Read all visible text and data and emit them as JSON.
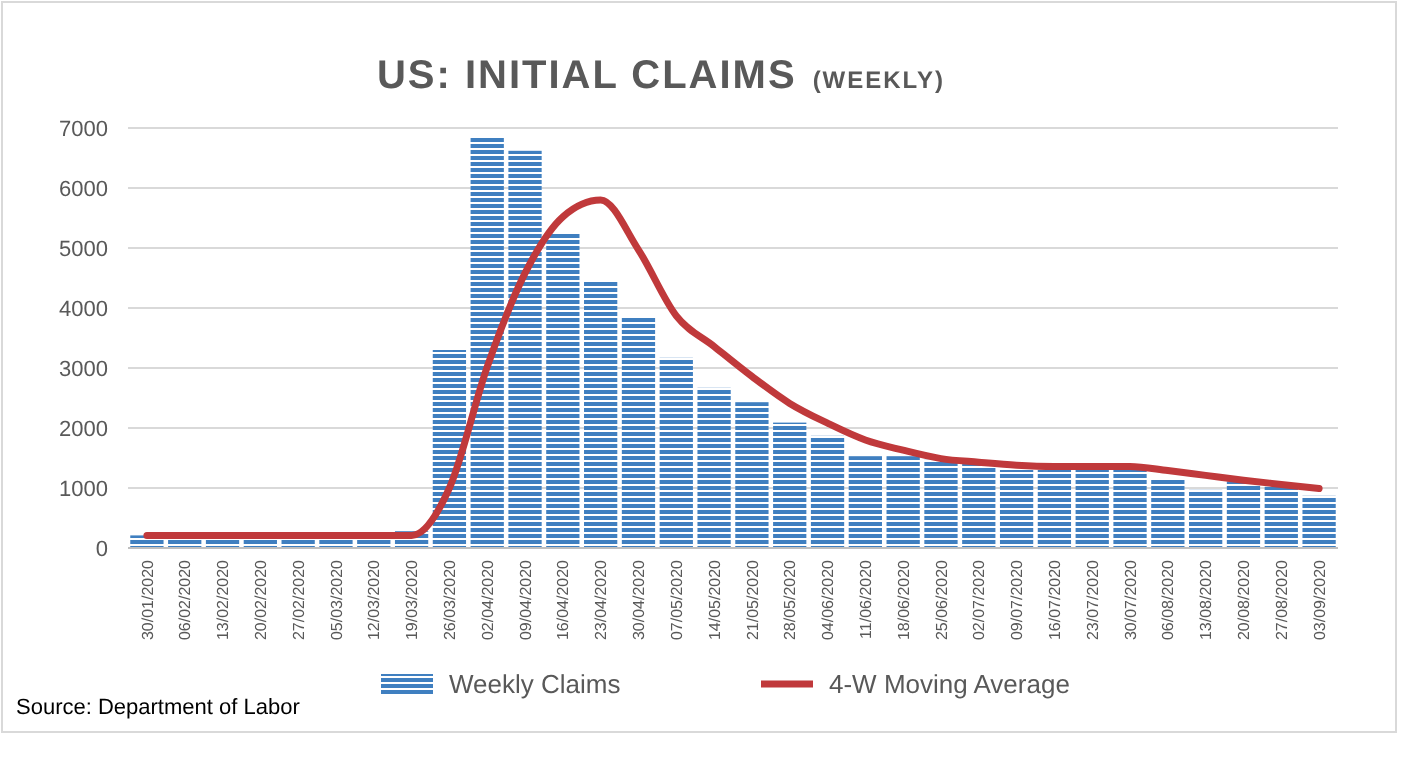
{
  "chart_data": {
    "type": "bar",
    "title": "US: INITIAL CLAIMS",
    "subtitle": "(WEEKLY)",
    "categories": [
      "30/01/2020",
      "06/02/2020",
      "13/02/2020",
      "20/02/2020",
      "27/02/2020",
      "05/03/2020",
      "12/03/2020",
      "19/03/2020",
      "26/03/2020",
      "02/04/2020",
      "09/04/2020",
      "16/04/2020",
      "23/04/2020",
      "30/04/2020",
      "07/05/2020",
      "14/05/2020",
      "21/05/2020",
      "28/05/2020",
      "04/06/2020",
      "11/06/2020",
      "18/06/2020",
      "25/06/2020",
      "02/07/2020",
      "09/07/2020",
      "16/07/2020",
      "23/07/2020",
      "30/07/2020",
      "06/08/2020",
      "13/08/2020",
      "20/08/2020",
      "27/08/2020",
      "03/09/2020"
    ],
    "series": [
      {
        "name": "Weekly Claims",
        "color": "#3f7fc0",
        "values": [
          210,
          210,
          210,
          210,
          210,
          210,
          210,
          280,
          3300,
          6850,
          6620,
          5240,
          4440,
          3840,
          3170,
          2670,
          2430,
          2090,
          1870,
          1530,
          1530,
          1470,
          1410,
          1300,
          1300,
          1300,
          1300,
          1160,
          970,
          1110,
          1020,
          870
        ]
      },
      {
        "name": "4-W Moving Average",
        "type": "line",
        "color": "#c0393b",
        "values": [
          210,
          210,
          210,
          210,
          210,
          210,
          210,
          210,
          1000,
          3020,
          4580,
          5520,
          5800,
          4970,
          3870,
          3360,
          2860,
          2410,
          2080,
          1800,
          1630,
          1490,
          1430,
          1380,
          1360,
          1360,
          1360,
          1290,
          1210,
          1130,
          1060,
          990
        ]
      }
    ],
    "ylim": [
      0,
      7000
    ],
    "yticks": [
      0,
      1000,
      2000,
      3000,
      4000,
      5000,
      6000,
      7000
    ],
    "grid": "y",
    "legend": "bottom",
    "annotations": [
      "Source: Department of Labor"
    ]
  }
}
